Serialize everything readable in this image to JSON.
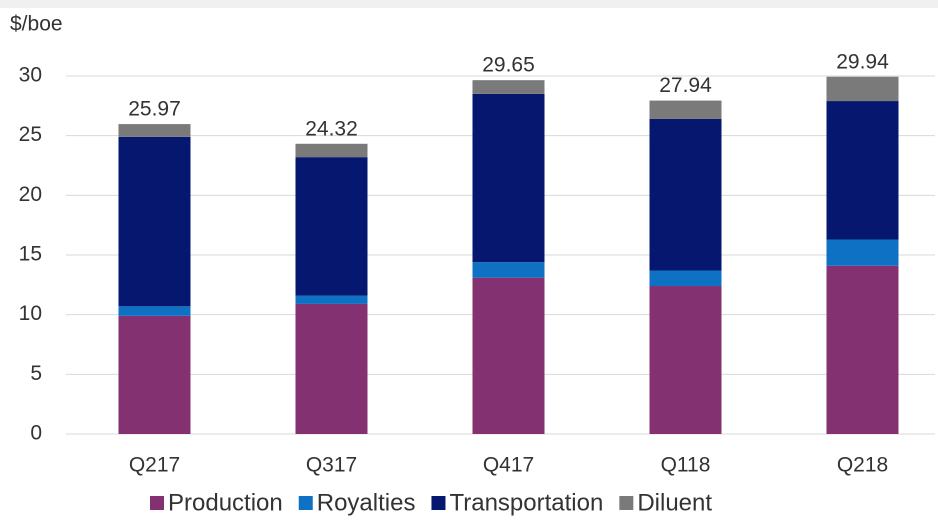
{
  "chart_data": {
    "type": "stacked_bar",
    "y_label": "$/boe",
    "categories": [
      "Q217",
      "Q317",
      "Q417",
      "Q118",
      "Q218"
    ],
    "series": [
      {
        "name": "Production",
        "color": "#833171",
        "values": [
          9.9,
          10.9,
          13.1,
          12.4,
          14.1
        ]
      },
      {
        "name": "Royalties",
        "color": "#0f71c4",
        "values": [
          0.8,
          0.7,
          1.3,
          1.3,
          2.2
        ]
      },
      {
        "name": "Transportation",
        "color": "#05176f",
        "values": [
          14.2,
          11.6,
          14.1,
          12.7,
          11.6
        ]
      },
      {
        "name": "Diluent",
        "color": "#7a7a7a",
        "values": [
          1.07,
          1.12,
          1.15,
          1.54,
          2.04
        ]
      }
    ],
    "totals": [
      25.97,
      24.32,
      29.65,
      27.94,
      29.94
    ],
    "ylim": [
      0,
      30
    ],
    "yticks": [
      0,
      5,
      10,
      15,
      20,
      25,
      30
    ],
    "grid": true,
    "legend": "bottom"
  }
}
